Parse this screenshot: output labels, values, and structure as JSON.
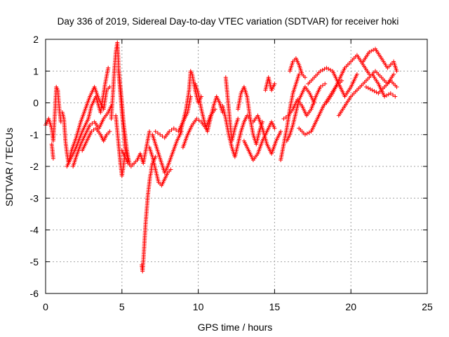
{
  "chart_data": {
    "type": "scatter",
    "title": "Day 336 of 2019, Sidereal Day-to-day VTEC variation (SDTVAR) for receiver hoki",
    "xlabel": "GPS time / hours",
    "ylabel": "SDTVAR / TECUs",
    "xlim": [
      0,
      25
    ],
    "ylim": [
      -6,
      2
    ],
    "xticks": [
      0,
      5,
      10,
      15,
      20,
      25
    ],
    "yticks": [
      -6,
      -5,
      -4,
      -3,
      -2,
      -1,
      0,
      1,
      2
    ],
    "grid": true,
    "marker": "+",
    "color": "#ff0000",
    "series": [
      {
        "name": "SDTVAR",
        "tracks": [
          {
            "x": [
              0.0,
              0.2,
              0.4,
              0.5,
              0.6,
              0.7,
              0.8,
              0.9,
              1.0
            ],
            "y": [
              -0.7,
              -0.5,
              -0.8,
              -1.2,
              -0.4,
              0.5,
              0.4,
              -0.2,
              -0.6
            ]
          },
          {
            "x": [
              0.4,
              0.45,
              0.5
            ],
            "y": [
              -1.3,
              -1.5,
              -1.75
            ]
          },
          {
            "x": [
              1.1,
              1.2,
              1.3,
              1.4,
              1.5,
              1.7,
              2.0,
              2.3,
              2.6,
              2.9,
              3.2,
              3.5,
              3.8,
              4.0,
              4.2
            ],
            "y": [
              -0.3,
              -0.5,
              -1.2,
              -1.6,
              -1.9,
              -1.5,
              -1.1,
              -0.6,
              -0.2,
              0.2,
              0.5,
              0.1,
              -0.2,
              0.4,
              0.5
            ]
          },
          {
            "x": [
              1.4,
              1.6,
              2.0,
              2.4,
              2.8,
              3.0,
              3.3,
              3.6,
              3.9,
              4.1
            ],
            "y": [
              -2.0,
              -1.8,
              -1.4,
              -0.9,
              -0.5,
              -0.1,
              0.2,
              -0.3,
              0.6,
              1.1
            ]
          },
          {
            "x": [
              1.8,
              2.0,
              2.3,
              2.6,
              2.9,
              3.2,
              3.5,
              3.8,
              4.1,
              4.3
            ],
            "y": [
              -2.0,
              -1.7,
              -1.3,
              -1.0,
              -0.7,
              -0.6,
              -0.8,
              -0.5,
              -0.3,
              -0.1
            ]
          },
          {
            "x": [
              2.4,
              2.7,
              3.0,
              3.3,
              3.6,
              3.8,
              4.0,
              4.2
            ],
            "y": [
              -1.5,
              -1.2,
              -0.9,
              -0.8,
              -1.0,
              -1.2,
              -1.0,
              -0.9
            ]
          },
          {
            "x": [
              4.3,
              4.4,
              4.5,
              4.6,
              4.7,
              4.75,
              4.8,
              4.9,
              5.0,
              5.1,
              5.2,
              5.4
            ],
            "y": [
              -0.5,
              0.2,
              1.0,
              1.6,
              1.9,
              1.5,
              0.9,
              0.3,
              -0.3,
              -0.8,
              -1.4,
              -1.8
            ]
          },
          {
            "x": [
              4.6,
              4.7,
              4.8,
              4.9,
              5.0,
              5.1,
              5.2
            ],
            "y": [
              -0.4,
              -0.9,
              -1.4,
              -1.9,
              -2.3,
              -2.0,
              -1.6
            ]
          },
          {
            "x": [
              4.8,
              4.9,
              5.0,
              5.1,
              5.2,
              5.3,
              5.4,
              5.5
            ],
            "y": [
              1.0,
              0.5,
              0.0,
              -0.6,
              -1.0,
              -1.4,
              -1.7,
              -1.9
            ]
          },
          {
            "x": [
              5.0,
              5.2,
              5.4,
              5.6,
              5.8,
              6.0,
              6.2,
              6.4,
              6.6,
              6.8
            ],
            "y": [
              -1.5,
              -1.7,
              -1.9,
              -2.0,
              -1.9,
              -1.8,
              -1.6,
              -1.9,
              -1.4,
              -0.9
            ]
          },
          {
            "x": [
              6.3,
              6.35,
              6.4,
              6.45,
              6.5,
              6.55,
              6.6,
              6.65,
              6.7,
              6.75,
              6.8,
              6.85,
              6.9,
              6.95,
              7.0,
              7.1,
              7.2
            ],
            "y": [
              -5.1,
              -5.3,
              -5.0,
              -4.6,
              -4.2,
              -3.8,
              -3.5,
              -3.2,
              -2.9,
              -2.7,
              -2.5,
              -2.3,
              -2.2,
              -2.0,
              -1.9,
              -1.8,
              -1.7
            ]
          },
          {
            "x": [
              6.8,
              7.0,
              7.2,
              7.4,
              7.6,
              7.8,
              8.0,
              8.2
            ],
            "y": [
              -1.4,
              -1.7,
              -2.1,
              -2.5,
              -2.6,
              -2.4,
              -2.2,
              -2.1
            ]
          },
          {
            "x": [
              7.0,
              7.2,
              7.4,
              7.6,
              7.8,
              8.0,
              8.3,
              8.6,
              8.9
            ],
            "y": [
              -1.0,
              -1.3,
              -1.6,
              -1.9,
              -2.2,
              -2.0,
              -1.6,
              -1.2,
              -0.9
            ]
          },
          {
            "x": [
              7.2,
              7.5,
              7.8,
              8.1,
              8.4,
              8.7,
              9.0,
              9.3,
              9.5
            ],
            "y": [
              -0.9,
              -1.0,
              -1.1,
              -0.9,
              -0.8,
              -0.9,
              -0.6,
              -0.3,
              0.2
            ]
          },
          {
            "x": [
              8.8,
              9.0,
              9.2,
              9.4,
              9.5,
              9.6,
              9.8,
              10.0,
              10.2
            ],
            "y": [
              -1.0,
              -0.6,
              -0.2,
              0.4,
              1.0,
              0.9,
              0.4,
              0.0,
              0.2
            ]
          },
          {
            "x": [
              9.0,
              9.3,
              9.6,
              9.9,
              10.2,
              10.5,
              10.8,
              11.1
            ],
            "y": [
              -1.4,
              -1.0,
              -0.7,
              -0.5,
              -0.6,
              -0.8,
              -0.4,
              -0.2
            ]
          },
          {
            "x": [
              9.8,
              10.0,
              10.2,
              10.4,
              10.6,
              10.8,
              11.0,
              11.2,
              11.4,
              11.6
            ],
            "y": [
              0.6,
              0.3,
              -0.2,
              -0.6,
              -0.9,
              -0.5,
              -0.1,
              0.2,
              0.0,
              -0.3
            ]
          },
          {
            "x": [
              11.6,
              11.8,
              12.0,
              12.2,
              12.4,
              12.6,
              12.8,
              13.0,
              13.2,
              13.4
            ],
            "y": [
              -0.1,
              -0.5,
              -1.0,
              -1.4,
              -1.7,
              -1.3,
              -0.9,
              -0.6,
              -0.4,
              -0.5
            ]
          },
          {
            "x": [
              11.8,
              11.9,
              12.0,
              12.1,
              12.2,
              12.4,
              12.6
            ],
            "y": [
              0.8,
              0.3,
              -0.2,
              -0.7,
              -1.2,
              -0.8,
              -0.5
            ]
          },
          {
            "x": [
              12.6,
              12.8,
              13.0,
              13.2,
              13.4,
              13.6,
              13.8,
              14.0,
              14.2
            ],
            "y": [
              -0.2,
              0.3,
              0.5,
              0.2,
              -0.5,
              -1.0,
              -1.3,
              -0.9,
              -0.6
            ]
          },
          {
            "x": [
              13.0,
              13.3,
              13.6,
              13.9,
              14.2,
              14.5,
              14.8,
              15.0
            ],
            "y": [
              -1.2,
              -1.5,
              -1.8,
              -1.6,
              -1.2,
              -0.9,
              -0.6,
              -0.8
            ]
          },
          {
            "x": [
              13.6,
              13.9,
              14.2,
              14.5,
              14.8,
              15.1,
              15.4
            ],
            "y": [
              -0.6,
              -0.4,
              -0.8,
              -1.3,
              -1.6,
              -1.2,
              -0.9
            ]
          },
          {
            "x": [
              14.4,
              14.5,
              14.6,
              14.7,
              14.8,
              15.0
            ],
            "y": [
              0.4,
              0.6,
              0.8,
              0.6,
              0.4,
              0.6
            ]
          },
          {
            "x": [
              15.4,
              15.6,
              15.8,
              16.0,
              16.2,
              16.4,
              16.6
            ],
            "y": [
              -1.8,
              -1.3,
              -0.8,
              -0.2,
              0.3,
              0.6,
              0.9
            ]
          },
          {
            "x": [
              15.8,
              16.0,
              16.2,
              16.4,
              16.6,
              16.8,
              17.0,
              17.3,
              17.6
            ],
            "y": [
              -1.2,
              -1.0,
              -0.7,
              -0.3,
              0.1,
              0.3,
              0.5,
              0.3,
              0.0
            ]
          },
          {
            "x": [
              15.6,
              15.9,
              16.2,
              16.5,
              16.8,
              17.1,
              17.4,
              17.7,
              18.0,
              18.3
            ],
            "y": [
              -0.5,
              -0.4,
              -0.2,
              0.1,
              -0.1,
              -0.4,
              -0.2,
              0.2,
              0.5,
              0.6
            ]
          },
          {
            "x": [
              16.0,
              16.2,
              16.4,
              16.6,
              16.8,
              17.0
            ],
            "y": [
              1.0,
              1.3,
              1.4,
              1.2,
              0.9,
              0.8
            ]
          },
          {
            "x": [
              16.6,
              17.0,
              17.4,
              17.8,
              18.2,
              18.6,
              19.0,
              19.4
            ],
            "y": [
              -0.8,
              -1.0,
              -0.9,
              -0.5,
              -0.1,
              0.2,
              0.5,
              0.7
            ]
          },
          {
            "x": [
              17.2,
              17.6,
              18.0,
              18.4,
              18.8,
              19.2,
              19.6,
              20.0,
              20.4
            ],
            "y": [
              0.6,
              0.8,
              1.0,
              1.1,
              1.0,
              0.6,
              0.2,
              0.5,
              0.9
            ]
          },
          {
            "x": [
              18.4,
              18.8,
              19.2,
              19.6,
              20.0,
              20.4,
              20.8,
              21.2
            ],
            "y": [
              0.0,
              0.3,
              0.7,
              1.1,
              1.3,
              1.5,
              1.2,
              0.9
            ]
          },
          {
            "x": [
              19.2,
              19.6,
              20.0,
              20.4,
              20.8,
              21.2,
              21.6,
              22.0,
              22.4,
              22.8
            ],
            "y": [
              -0.4,
              -0.1,
              0.2,
              0.4,
              0.6,
              0.8,
              1.0,
              0.8,
              0.6,
              0.9
            ]
          },
          {
            "x": [
              20.8,
              21.2,
              21.6,
              22.0,
              22.4,
              22.8,
              23.0
            ],
            "y": [
              1.3,
              1.6,
              1.7,
              1.4,
              1.1,
              1.3,
              1.0
            ]
          },
          {
            "x": [
              21.0,
              21.4,
              21.8,
              22.2,
              22.6,
              23.0
            ],
            "y": [
              0.5,
              0.4,
              0.3,
              0.5,
              0.7,
              0.5
            ]
          },
          {
            "x": [
              21.4,
              21.8,
              22.2,
              22.6,
              22.9
            ],
            "y": [
              0.9,
              0.6,
              0.2,
              0.3,
              0.2
            ]
          }
        ]
      }
    ]
  }
}
